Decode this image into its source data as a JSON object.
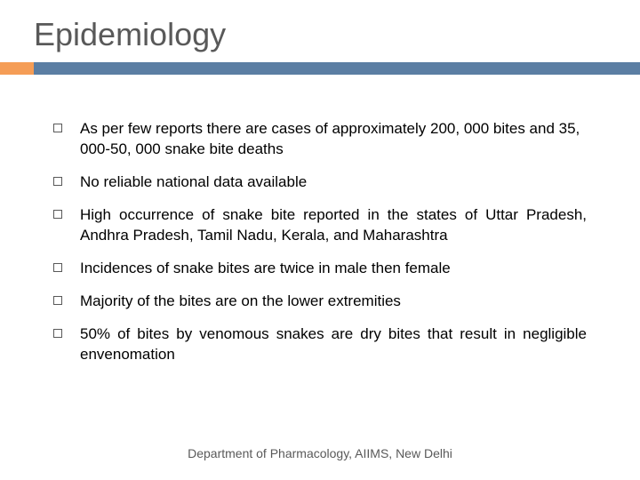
{
  "title": "Epidemiology",
  "accent": {
    "left_color": "#f59d56",
    "right_color": "#5b7ea3"
  },
  "bullets": [
    {
      "text": "As per few reports there are cases of approximately 200, 000 bites and 35, 000-50, 000 snake bite deaths",
      "justify": false
    },
    {
      "text": "No reliable national data available",
      "justify": false
    },
    {
      "text": "High occurrence of snake bite  reported in the states of Uttar Pradesh, Andhra Pradesh, Tamil Nadu, Kerala, and Maharashtra",
      "justify": true
    },
    {
      "text": "Incidences of snake bites are twice in male then female",
      "justify": false
    },
    {
      "text": "Majority of the bites are on the lower extremities",
      "justify": false
    },
    {
      "text": "50% of bites by venomous snakes are dry bites that result in negligible envenomation",
      "justify": true
    }
  ],
  "footer": "Department of Pharmacology, AIIMS, New Delhi"
}
